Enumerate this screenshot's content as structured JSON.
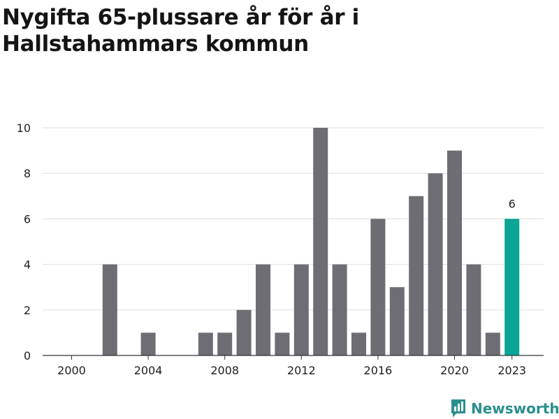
{
  "title": "Nygifta 65-plussare år för år i Hallstahammars kommun",
  "brand": {
    "name": "Newsworthy",
    "icon": "newsworthy-logo-icon"
  },
  "colors": {
    "bar": "#6e6d74",
    "highlight": "#0aa596",
    "grid": "#dddddd",
    "axis": "#333333"
  },
  "chart_data": {
    "type": "bar",
    "title": "Nygifta 65-plussare år för år i Hallstahammars kommun",
    "xlabel": "",
    "ylabel": "",
    "categories": [
      2000,
      2001,
      2002,
      2003,
      2004,
      2005,
      2006,
      2007,
      2008,
      2009,
      2010,
      2011,
      2012,
      2013,
      2014,
      2015,
      2016,
      2017,
      2018,
      2019,
      2020,
      2021,
      2022,
      2023
    ],
    "values": [
      0,
      0,
      4,
      0,
      1,
      0,
      0,
      1,
      1,
      2,
      4,
      1,
      4,
      10,
      4,
      1,
      6,
      3,
      7,
      8,
      9,
      4,
      1,
      6
    ],
    "highlight": {
      "category": 2023,
      "label": "6"
    },
    "x_ticks": [
      "2000",
      "2004",
      "2008",
      "2012",
      "2016",
      "2020",
      "2023"
    ],
    "y_ticks": [
      "0",
      "2",
      "4",
      "6",
      "8",
      "10"
    ],
    "ylim": [
      0,
      10
    ],
    "grid": true,
    "legend": "none"
  }
}
